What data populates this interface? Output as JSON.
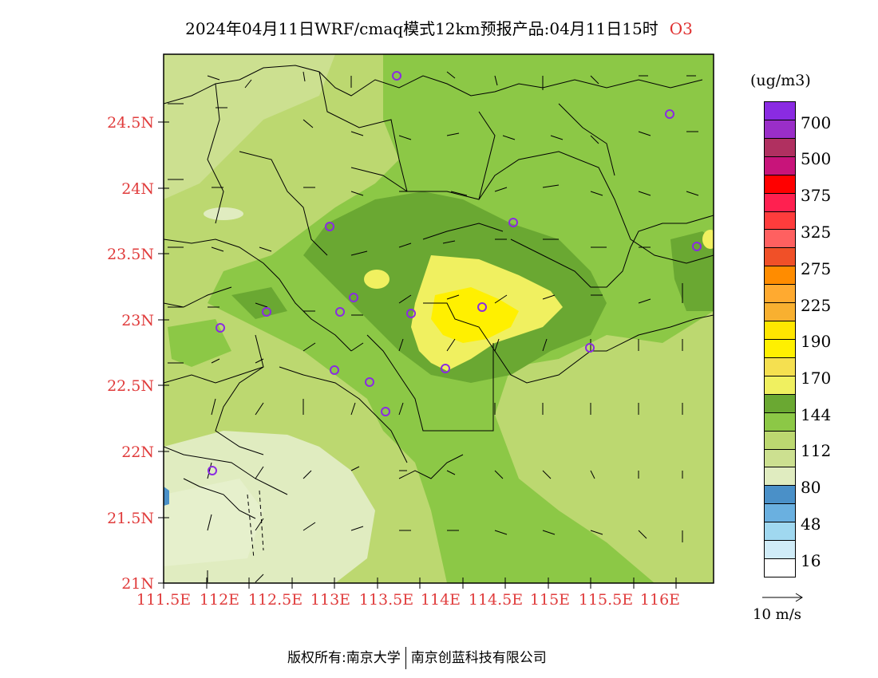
{
  "title": {
    "main": "2024年04月11日WRF/cmaq模式12km预报产品:04月11日15时",
    "species": "O3"
  },
  "axes": {
    "lat_labels": [
      "24.5N",
      "24N",
      "23.5N",
      "23N",
      "22.5N",
      "22N",
      "21.5N",
      "21N"
    ],
    "lon_labels": [
      "111.5E",
      "112E",
      "112.5E",
      "113E",
      "113.5E",
      "114E",
      "114.5E",
      "115E",
      "115.5E",
      "116E"
    ]
  },
  "legend": {
    "unit": "(ug/m3)",
    "labels": [
      "700",
      "500",
      "375",
      "325",
      "275",
      "225",
      "190",
      "170",
      "144",
      "112",
      "80",
      "48",
      "16"
    ],
    "colors": [
      "#8a2be2",
      "#9a2ec8",
      "#b03060",
      "#c8147a",
      "#ff0000",
      "#ff2050",
      "#ff3c3c",
      "#ff6060",
      "#f05028",
      "#ff8c00",
      "#ffaa30",
      "#f8b030",
      "#ffe600",
      "#fff000",
      "#f5e050",
      "#f0f060",
      "#6aa832",
      "#8cc846",
      "#bcd870",
      "#cce090",
      "#e0ecc0",
      "#4a90c8",
      "#6ab0e0",
      "#a0d8f0",
      "#d0ecf8",
      "#ffffff"
    ],
    "wind_ref": "10 m/s"
  },
  "footer": {
    "left": "版权所有:南京大学",
    "right": "南京创蓝科技有限公司"
  }
}
